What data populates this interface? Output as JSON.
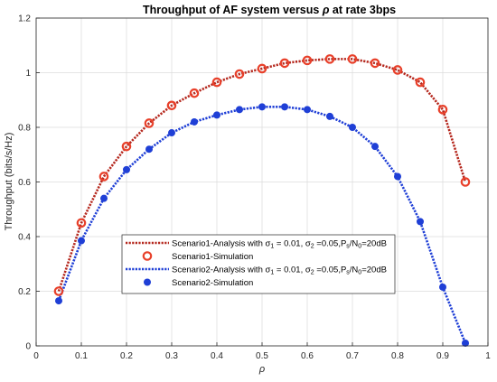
{
  "chart_data": {
    "type": "line",
    "title_main": "Throughput of AF system versus ",
    "title_symbol": "ρ",
    "title_tail": " at rate 3bps",
    "xlabel": "ρ",
    "ylabel": "Throughput (bits/s/Hz)",
    "xlim": [
      0,
      1
    ],
    "ylim": [
      0,
      1.2
    ],
    "grid": true,
    "legend_placement": "inside-lower-center",
    "x_ticks": [
      "0",
      "0.1",
      "0.2",
      "0.3",
      "0.4",
      "0.5",
      "0.6",
      "0.7",
      "0.8",
      "0.9",
      "1"
    ],
    "y_ticks": [
      "0",
      "0.2",
      "0.4",
      "0.6",
      "0.8",
      "1",
      "1.2"
    ],
    "x": [
      0.05,
      0.1,
      0.15,
      0.2,
      0.25,
      0.3,
      0.35,
      0.4,
      0.45,
      0.5,
      0.55,
      0.6,
      0.65,
      0.7,
      0.75,
      0.8,
      0.85,
      0.9,
      0.95
    ],
    "series": [
      {
        "name": "Scenario1-Analysis with σ1 = 0.01, σ2 =0.05,Ps/N0=20dB",
        "kind": "line",
        "color": "#b5281e",
        "values": [
          0.2,
          0.45,
          0.62,
          0.73,
          0.815,
          0.88,
          0.925,
          0.965,
          0.995,
          1.015,
          1.035,
          1.045,
          1.05,
          1.05,
          1.035,
          1.01,
          0.965,
          0.865,
          0.6
        ]
      },
      {
        "name": "Scenario1-Simulation",
        "kind": "marker-circle",
        "color": "#e8402a",
        "values": [
          0.2,
          0.45,
          0.62,
          0.73,
          0.815,
          0.88,
          0.925,
          0.965,
          0.995,
          1.015,
          1.035,
          1.045,
          1.05,
          1.05,
          1.035,
          1.01,
          0.965,
          0.865,
          0.6
        ]
      },
      {
        "name": "Scenario2-Analysis with σ1 = 0.01, σ2 =0.05,Ps/N0=20dB",
        "kind": "line",
        "color": "#1f3fd6",
        "values": [
          0.165,
          0.385,
          0.54,
          0.645,
          0.72,
          0.78,
          0.82,
          0.845,
          0.865,
          0.875,
          0.875,
          0.865,
          0.84,
          0.8,
          0.73,
          0.62,
          0.455,
          0.215,
          0.01
        ]
      },
      {
        "name": "Scenario2-Simulation",
        "kind": "marker-dot",
        "color": "#1f3fd6",
        "values": [
          0.165,
          0.385,
          0.54,
          0.645,
          0.72,
          0.78,
          0.82,
          0.845,
          0.865,
          0.875,
          0.875,
          0.865,
          0.84,
          0.8,
          0.73,
          0.62,
          0.455,
          0.215,
          0.01
        ]
      }
    ],
    "legend": [
      {
        "prefix": "Scenario1-Analysis with σ",
        "sub1": "1",
        "mid1": " = 0.01, σ",
        "sub2": "2",
        "mid2": " =0.05,P",
        "sub3": "s",
        "mid3": "/N",
        "sub4": "0",
        "suffix": "=20dB"
      },
      {
        "text": "Scenario1-Simulation"
      },
      {
        "prefix": "Scenario2-Analysis with σ",
        "sub1": "1",
        "mid1": " = 0.01, σ",
        "sub2": "2",
        "mid2": " =0.05,P",
        "sub3": "s",
        "mid3": "/N",
        "sub4": "0",
        "suffix": "=20dB"
      },
      {
        "text": "Scenario2-Simulation"
      }
    ]
  }
}
